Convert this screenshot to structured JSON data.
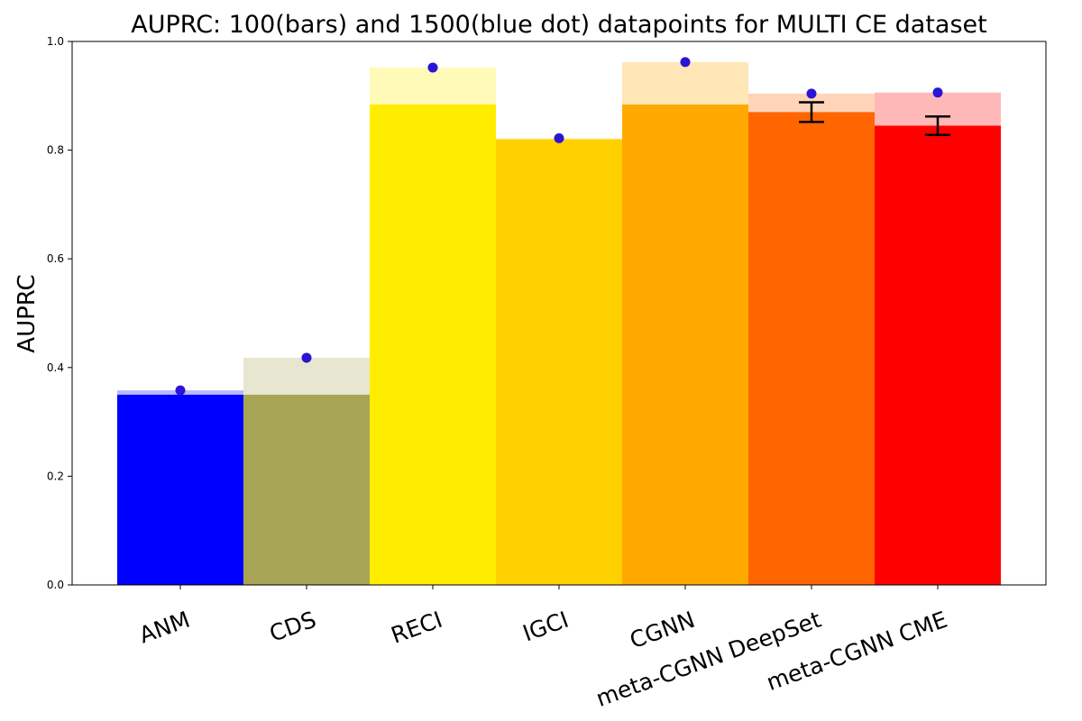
{
  "chart_data": {
    "type": "bar",
    "title": "AUPRC: 100(bars) and 1500(blue dot) datapoints for MULTI CE dataset",
    "xlabel": "",
    "ylabel": "AUPRC",
    "ylim": [
      0,
      1.0
    ],
    "yticks": [
      0.0,
      0.2,
      0.4,
      0.6,
      0.8,
      1.0
    ],
    "ytick_labels": [
      "0.0",
      "0.2",
      "0.4",
      "0.6",
      "0.8",
      "1.0"
    ],
    "grid": false,
    "categories": [
      "ANM",
      "CDS",
      "RECI",
      "IGCI",
      "CGNN",
      "meta-CGNN DeepSet",
      "meta-CGNN CME"
    ],
    "series": [
      {
        "values": [
          0.35,
          0.35,
          0.884,
          0.82,
          0.884,
          0.87,
          0.845
        ],
        "error": [
          null,
          null,
          null,
          null,
          null,
          0.018,
          0.017
        ]
      },
      {
        "values": [
          0.358,
          0.418,
          0.952,
          0.822,
          0.962,
          0.904,
          0.906
        ]
      }
    ],
    "colors": [
      "#0000ff",
      "#a8a455",
      "#ffee00",
      "#ffd000",
      "#ffaa00",
      "#ff6600",
      "#ff0000"
    ],
    "dot_color": "#2a14d6"
  }
}
